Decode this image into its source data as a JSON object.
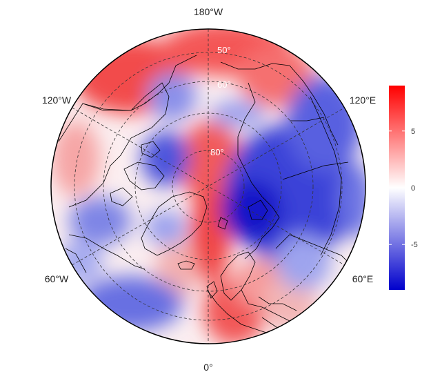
{
  "map": {
    "projection": "north-polar-stereographic",
    "outer_labels": {
      "top": "180°W",
      "bottom": "0°",
      "upper_left": "120°W",
      "upper_right": "120°E",
      "lower_left": "60°W",
      "lower_right": "60°E"
    },
    "lat_labels": [
      "50°",
      "60°",
      "80°"
    ],
    "field": {
      "description_colors": [
        "#0000cc",
        "#ffffff",
        "#ff0000"
      ],
      "range": [
        -9,
        9
      ]
    }
  },
  "colorbar": {
    "ticks": [
      "5",
      "0",
      "-5"
    ],
    "tick_values": [
      5,
      0,
      -5
    ],
    "min": -9,
    "max": 9,
    "colors": [
      "#0000cc",
      "#ffffff",
      "#ff0000"
    ]
  }
}
